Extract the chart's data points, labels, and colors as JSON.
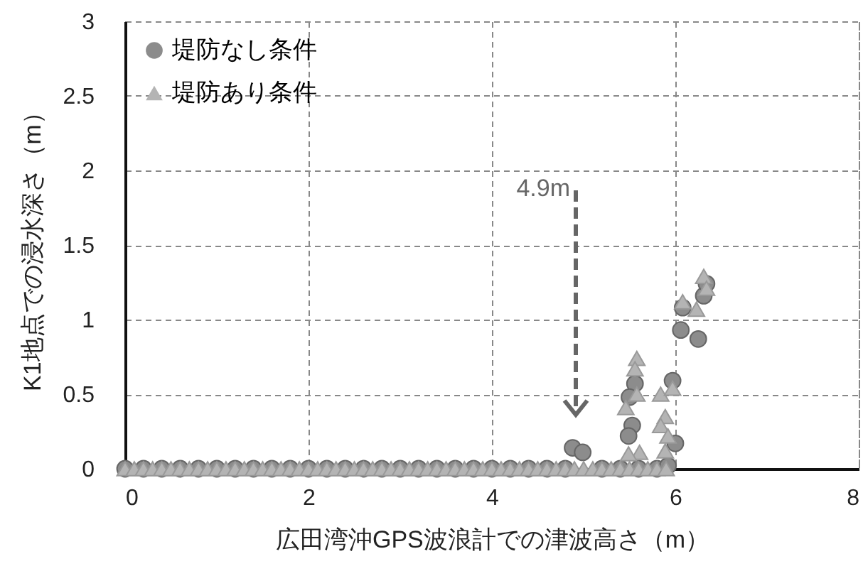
{
  "chart_data": {
    "type": "scatter",
    "xlabel": "広田湾沖GPS波浪計での津波高さ（m）",
    "ylabel": "K1地点での浸水深さ（m）",
    "xlim": [
      0,
      8
    ],
    "xticks": [
      0,
      2,
      4,
      6,
      8
    ],
    "ylim": [
      0,
      3
    ],
    "yticks": [
      0,
      0.5,
      1,
      1.5,
      2,
      2.5,
      3
    ],
    "grid": true,
    "legend": "top left",
    "annotations": [
      "4.9m"
    ],
    "series": [
      {
        "name": "堤防なし条件",
        "color": "#8c8c8c",
        "marker": "circle",
        "x": [
          0,
          0.2,
          0.4,
          0.6,
          0.8,
          1,
          1.2,
          1.4,
          1.6,
          1.8,
          2,
          2.2,
          2.4,
          2.6,
          2.8,
          3,
          3.2,
          3.4,
          3.6,
          3.8,
          4,
          4.2,
          4.4,
          4.6,
          4.8,
          5.2,
          5.4,
          5.6,
          5.8,
          4.88,
          4.99,
          5.53,
          5.49,
          5.56,
          5.5,
          5.97,
          6,
          5.92,
          6.06,
          6.25,
          6.31,
          6.34,
          6.08
        ],
        "values": [
          0,
          0,
          0,
          0,
          0,
          0,
          0,
          0,
          0,
          0,
          0,
          0,
          0,
          0,
          0,
          0,
          0,
          0,
          0,
          0,
          0,
          0,
          0,
          0,
          0,
          0,
          0,
          0,
          0,
          0.14,
          0.11,
          0.29,
          0.22,
          0.57,
          0.48,
          0.59,
          0.17,
          0.02,
          0.93,
          0.87,
          1.16,
          1.24,
          1.08
        ]
      },
      {
        "name": "堤防あり条件",
        "color": "#b4b4b4",
        "marker": "triangle",
        "x": [
          0,
          0.1,
          0.2,
          0.3,
          0.4,
          0.5,
          0.6,
          0.7,
          0.8,
          0.9,
          1,
          1.1,
          1.2,
          1.3,
          1.4,
          1.5,
          1.6,
          1.7,
          1.8,
          1.9,
          2,
          2.1,
          2.2,
          2.3,
          2.4,
          2.5,
          2.6,
          2.7,
          2.8,
          2.9,
          3,
          3.1,
          3.2,
          3.3,
          3.4,
          3.5,
          3.6,
          3.7,
          3.8,
          3.9,
          4,
          4.1,
          4.2,
          4.3,
          4.4,
          4.5,
          4.6,
          4.7,
          4.8,
          4.9,
          5,
          5.1,
          5.2,
          5.3,
          5.4,
          5.5,
          5.6,
          5.7,
          5.8,
          5.9,
          6.31,
          6.34,
          6.08,
          6.23,
          5.58,
          5.56,
          5.46,
          5.58,
          5.84,
          5.97,
          5.89,
          5.84,
          5.92,
          5.89,
          5.61,
          5.49
        ],
        "values": [
          0,
          0,
          0,
          0,
          0,
          0,
          0,
          0,
          0,
          0,
          0,
          0,
          0,
          0,
          0,
          0,
          0,
          0,
          0,
          0,
          0,
          0,
          0,
          0,
          0,
          0,
          0,
          0,
          0,
          0,
          0,
          0,
          0,
          0,
          0,
          0,
          0,
          0,
          0,
          0,
          0,
          0,
          0,
          0,
          0,
          0,
          0,
          0,
          0,
          0,
          0,
          0,
          0,
          0,
          0,
          0,
          0,
          0,
          0,
          0,
          1.29,
          1.21,
          1.12,
          1.07,
          0.74,
          0.67,
          0.41,
          0.5,
          0.5,
          0.54,
          0.35,
          0.29,
          0.22,
          0.12,
          0.11,
          0.1
        ]
      }
    ]
  }
}
